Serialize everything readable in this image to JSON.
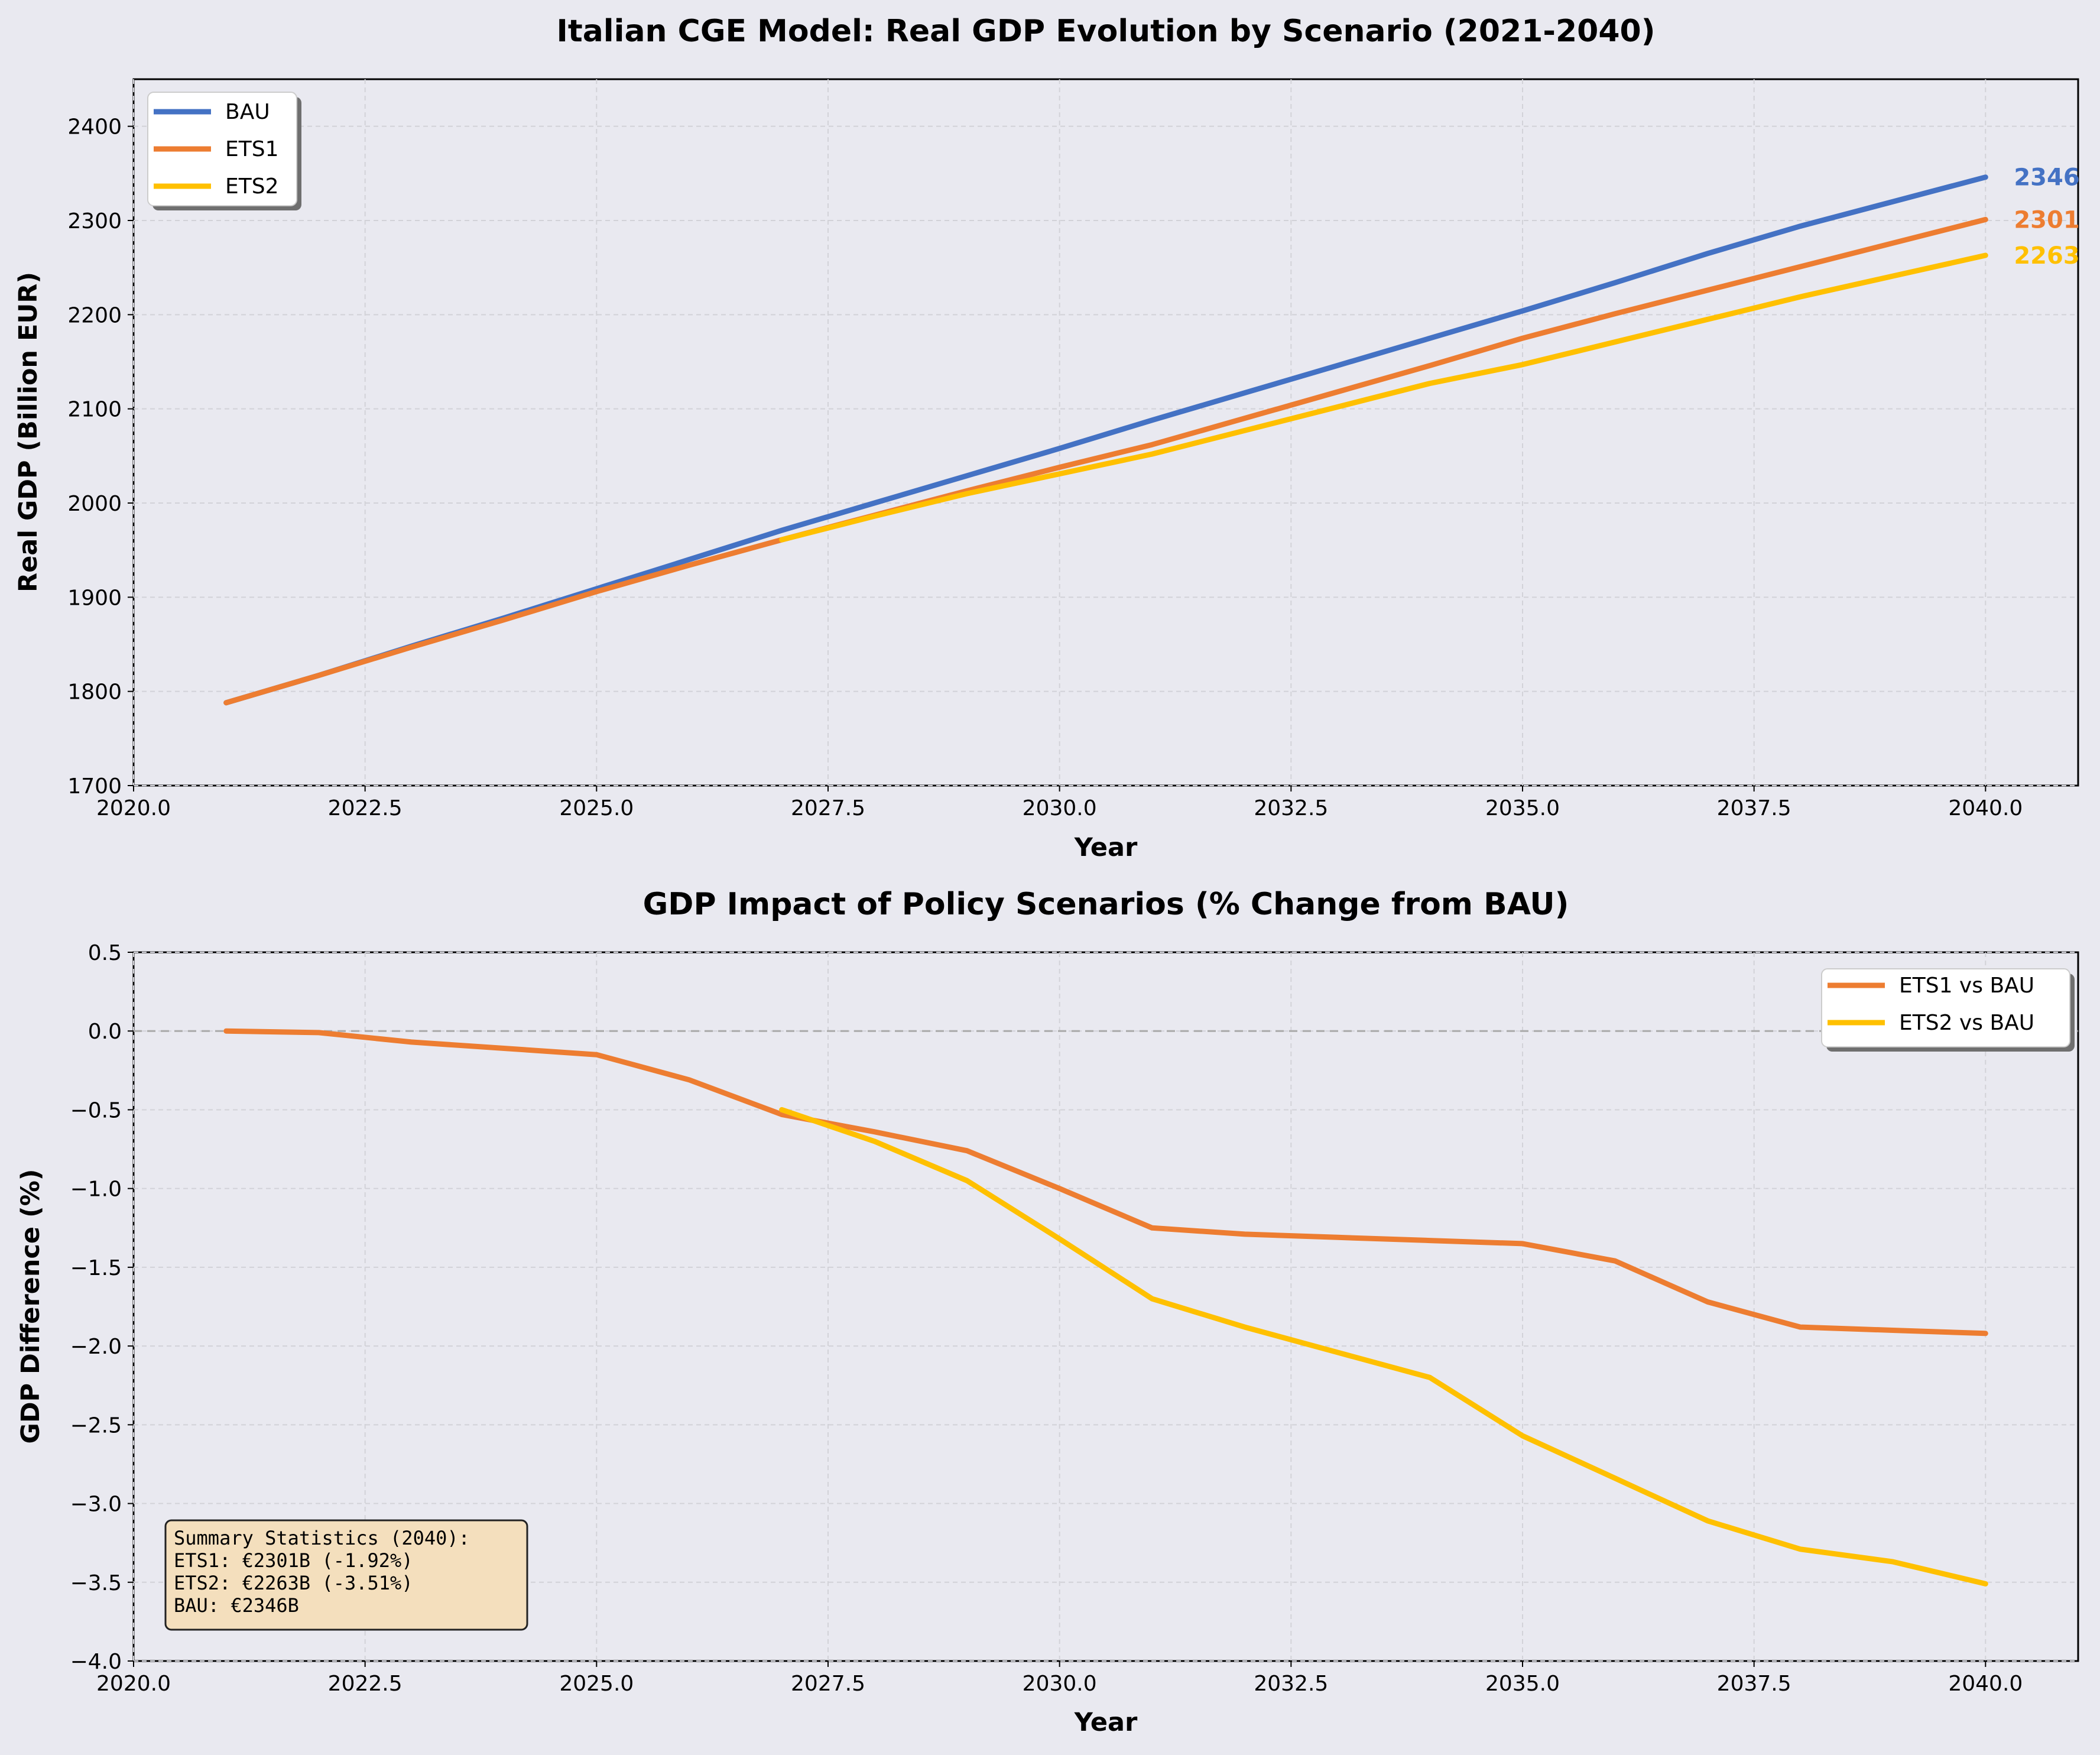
{
  "chart_data": [
    {
      "type": "line",
      "title": "Italian CGE Model: Real GDP Evolution by Scenario (2021-2040)",
      "xlabel": "Year",
      "ylabel": "Real GDP (Billion EUR)",
      "xlim": [
        2020.0,
        2041.0
      ],
      "ylim": [
        1700,
        2450
      ],
      "xticks": [
        "2020.0",
        "2022.5",
        "2025.0",
        "2027.5",
        "2030.0",
        "2032.5",
        "2035.0",
        "2037.5",
        "2040.0"
      ],
      "yticks": [
        "1700",
        "1800",
        "1900",
        "2000",
        "2100",
        "2200",
        "2300",
        "2400"
      ],
      "grid": true,
      "legend": "upper-left",
      "series": [
        {
          "name": "BAU",
          "color": "#4472c4",
          "x": [
            2021,
            2022,
            2023,
            2024,
            2025,
            2026,
            2027,
            2028,
            2029,
            2030,
            2031,
            2032,
            2033,
            2034,
            2035,
            2036,
            2037,
            2038,
            2039,
            2040
          ],
          "values": [
            1788,
            1817,
            1848,
            1878,
            1909,
            1940,
            1971,
            2000,
            2029,
            2058,
            2088,
            2117,
            2146,
            2175,
            2204,
            2234,
            2265,
            2294,
            2320,
            2346
          ]
        },
        {
          "name": "ETS1",
          "color": "#ed7d31",
          "x": [
            2021,
            2022,
            2023,
            2024,
            2025,
            2026,
            2027,
            2028,
            2029,
            2030,
            2031,
            2032,
            2033,
            2034,
            2035,
            2036,
            2037,
            2038,
            2039,
            2040
          ],
          "values": [
            1788,
            1817,
            1847,
            1876,
            1906,
            1934,
            1961,
            1987,
            2013,
            2038,
            2062,
            2090,
            2118,
            2146,
            2175,
            2201,
            2226,
            2251,
            2276,
            2301
          ]
        },
        {
          "name": "ETS2",
          "color": "#ffc000",
          "x": [
            2027,
            2028,
            2029,
            2030,
            2031,
            2032,
            2033,
            2034,
            2035,
            2036,
            2037,
            2038,
            2039,
            2040
          ],
          "values": [
            1961,
            1986,
            2010,
            2031,
            2052,
            2077,
            2102,
            2127,
            2147,
            2171,
            2195,
            2219,
            2241,
            2263
          ]
        }
      ],
      "end_labels": [
        {
          "text": "2346",
          "value": 2346,
          "color": "#4472c4"
        },
        {
          "text": "2301",
          "value": 2301,
          "color": "#ed7d31"
        },
        {
          "text": "2263",
          "value": 2263,
          "color": "#ffc000"
        }
      ]
    },
    {
      "type": "line",
      "title": "GDP Impact of Policy Scenarios (% Change from BAU)",
      "xlabel": "Year",
      "ylabel": "GDP Difference (%)",
      "xlim": [
        2020.0,
        2041.0
      ],
      "ylim": [
        -4.0,
        0.5
      ],
      "xticks": [
        "2020.0",
        "2022.5",
        "2025.0",
        "2027.5",
        "2030.0",
        "2032.5",
        "2035.0",
        "2037.5",
        "2040.0"
      ],
      "yticks": [
        "0.5",
        "0.0",
        "−0.5",
        "−1.0",
        "−1.5",
        "−2.0",
        "−2.5",
        "−3.0",
        "−3.5",
        "−4.0"
      ],
      "grid": true,
      "legend": "upper-right",
      "reference_line": 0.0,
      "series": [
        {
          "name": "ETS1 vs BAU",
          "color": "#ed7d31",
          "x": [
            2021,
            2022,
            2023,
            2024,
            2025,
            2026,
            2027,
            2028,
            2029,
            2030,
            2031,
            2032,
            2033,
            2034,
            2035,
            2036,
            2037,
            2038,
            2039,
            2040
          ],
          "values": [
            0.0,
            -0.01,
            -0.07,
            -0.11,
            -0.15,
            -0.31,
            -0.53,
            -0.64,
            -0.76,
            -1.0,
            -1.25,
            -1.29,
            -1.31,
            -1.33,
            -1.35,
            -1.46,
            -1.72,
            -1.88,
            -1.9,
            -1.92
          ]
        },
        {
          "name": "ETS2 vs BAU",
          "color": "#ffc000",
          "x": [
            2027,
            2028,
            2029,
            2030,
            2031,
            2032,
            2033,
            2034,
            2035,
            2036,
            2037,
            2038,
            2039,
            2040
          ],
          "values": [
            -0.5,
            -0.7,
            -0.95,
            -1.32,
            -1.7,
            -1.88,
            -2.04,
            -2.2,
            -2.57,
            -2.84,
            -3.11,
            -3.29,
            -3.37,
            -3.51
          ]
        }
      ],
      "annotation": [
        "Summary Statistics (2040):",
        "ETS1: €2301B (-1.92%)",
        "ETS2: €2263B (-3.51%)",
        "BAU: €2346B"
      ]
    }
  ]
}
